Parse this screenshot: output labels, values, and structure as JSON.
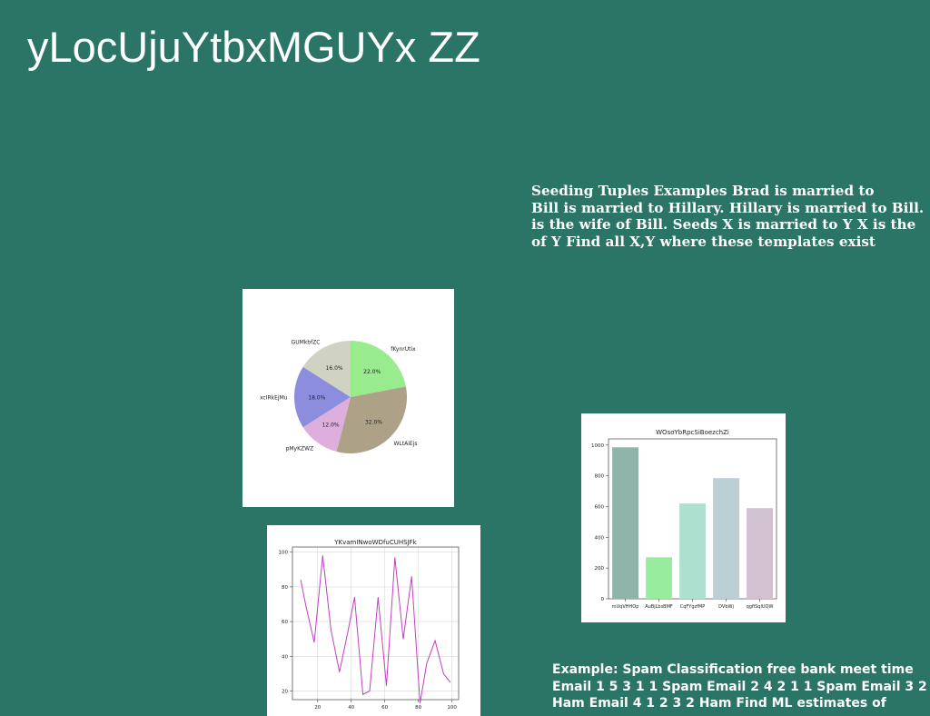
{
  "slide": {
    "title": "yLocUjuYtbxMGUYx ZZ",
    "text_block_1": {
      "lines": [
        "Seeding Tuples Examples Brad is married to",
        "Bill is married to Hillary. Hillary is married to Bill.",
        "is the wife of Bill. Seeds X is married to Y X is the",
        "of Y Find all X,Y where these templates exist"
      ]
    },
    "text_block_2": {
      "lines": [
        "Example: Spam Classification free bank meet time",
        "Email 1 5 3 1 1 Spam Email 2 4 2 1 1 Spam Email 3 2 1 2",
        "Ham Email 4 1 2 3 2 Ham Find ML estimates of"
      ]
    },
    "colors": {
      "background": "#2a7565",
      "text": "#ffffff"
    }
  },
  "chart_data": [
    {
      "type": "pie",
      "title": "",
      "slices": [
        {
          "label": "fKynrUtix",
          "value": 22.0,
          "pct_label": "22.0%",
          "color": "#98ec8d"
        },
        {
          "label": "WLtAiEjs",
          "value": 32.0,
          "pct_label": "32.0%",
          "color": "#ada287"
        },
        {
          "label": "pMyKZWZ",
          "value": 12.0,
          "pct_label": "12.0%",
          "color": "#deaedc"
        },
        {
          "label": "xcIRkEjMu",
          "value": 18.0,
          "pct_label": "18.0%",
          "color": "#8d8ddd"
        },
        {
          "label": "GUMkbfZC",
          "value": 16.0,
          "pct_label": "16.0%",
          "color": "#d0d2c2"
        }
      ],
      "start_angle_deg": 90,
      "direction": "clockwise"
    },
    {
      "type": "bar",
      "title": "WOsoYbRpcSiBoezchZi",
      "categories": [
        "mUqVHHOp",
        "AuBjLbsBMF",
        "CqFYgzfMP",
        "DVbWj",
        "qgfiSqlUQW"
      ],
      "values": [
        985,
        270,
        620,
        785,
        590
      ],
      "colors": [
        "#8fb5ab",
        "#98ec9e",
        "#aee0d0",
        "#bccfd6",
        "#d2c1d1"
      ],
      "ylim": [
        0,
        1040
      ],
      "yticks": [
        0,
        200,
        400,
        600,
        800,
        1000
      ]
    },
    {
      "type": "line",
      "title": "YKvamINwoWDfuCUHSJFk",
      "x": [
        10,
        13,
        18,
        23,
        28,
        33,
        38,
        42,
        47,
        51,
        56,
        61,
        66,
        71,
        76,
        81,
        85,
        90,
        95,
        99
      ],
      "y": [
        84,
        69,
        48,
        98,
        55,
        31,
        54,
        74,
        18,
        20,
        74,
        23,
        97,
        50,
        86,
        13,
        36,
        49,
        30,
        25
      ],
      "color": "#c040c0",
      "xlim": [
        5,
        104
      ],
      "ylim": [
        15,
        103
      ],
      "xticks": [
        20,
        40,
        60,
        80,
        100
      ],
      "yticks": [
        20,
        40,
        60,
        80,
        100
      ],
      "grid": true
    }
  ]
}
